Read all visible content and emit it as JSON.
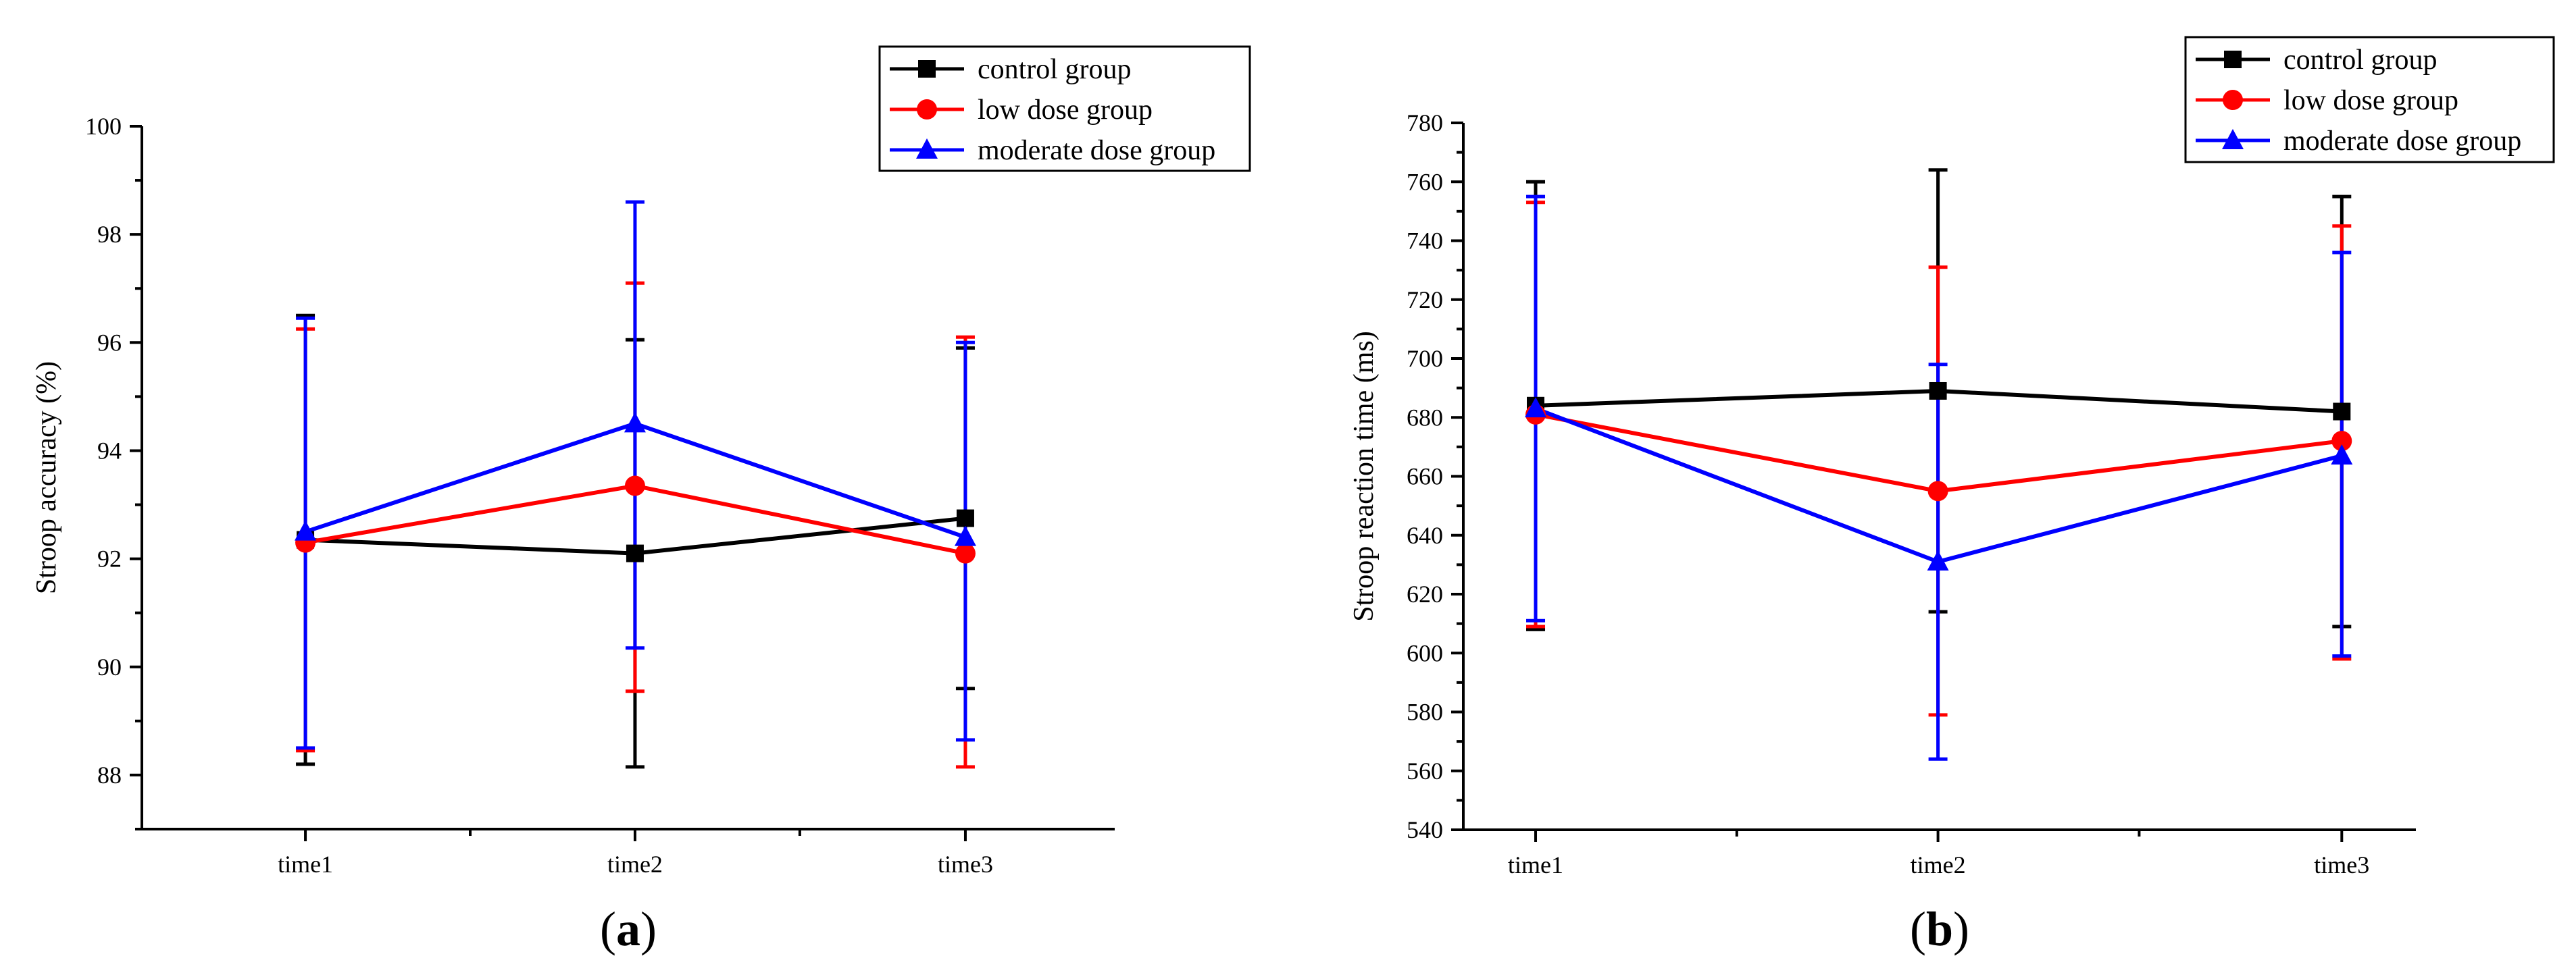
{
  "chart_data": [
    {
      "type": "line",
      "panel_label": "(a)",
      "categories": [
        "time1",
        "time2",
        "time3"
      ],
      "ylabel": "Stroop accuracy (%)",
      "xlabel": "",
      "ylim": [
        87,
        100
      ],
      "yticks": [
        88,
        90,
        92,
        94,
        96,
        98,
        100
      ],
      "series": [
        {
          "name": "control group",
          "color": "#000000",
          "marker": "square",
          "values": [
            92.35,
            92.1,
            92.75
          ],
          "err_low": [
            88.2,
            88.15,
            89.6
          ],
          "err_high": [
            96.5,
            96.05,
            95.9
          ]
        },
        {
          "name": "low dose group",
          "color": "#ff0000",
          "marker": "circle",
          "values": [
            92.3,
            93.35,
            92.1
          ],
          "err_low": [
            88.45,
            89.55,
            88.15
          ],
          "err_high": [
            96.25,
            97.1,
            96.1
          ]
        },
        {
          "name": "moderate dose group",
          "color": "#0000ff",
          "marker": "triangle",
          "values": [
            92.5,
            94.5,
            92.4
          ],
          "err_low": [
            88.5,
            90.35,
            88.65
          ],
          "err_high": [
            96.45,
            98.6,
            96.0
          ]
        }
      ],
      "legend_position": "top-right"
    },
    {
      "type": "line",
      "panel_label": "(b)",
      "categories": [
        "time1",
        "time2",
        "time3"
      ],
      "ylabel": "Stroop reaction time (ms)",
      "xlabel": "",
      "ylim": [
        540,
        780
      ],
      "yticks": [
        540,
        560,
        580,
        600,
        620,
        640,
        660,
        680,
        700,
        720,
        740,
        760,
        780
      ],
      "series": [
        {
          "name": "control group",
          "color": "#000000",
          "marker": "square",
          "values": [
            684,
            689,
            682
          ],
          "err_low": [
            608,
            614,
            609
          ],
          "err_high": [
            760,
            764,
            755
          ]
        },
        {
          "name": "low dose group",
          "color": "#ff0000",
          "marker": "circle",
          "values": [
            681,
            655,
            672
          ],
          "err_low": [
            609,
            579,
            598
          ],
          "err_high": [
            753,
            731,
            745
          ]
        },
        {
          "name": "moderate dose group",
          "color": "#0000ff",
          "marker": "triangle",
          "values": [
            683,
            631,
            667
          ],
          "err_low": [
            611,
            564,
            599
          ],
          "err_high": [
            755,
            698,
            736
          ]
        }
      ],
      "legend_position": "top-right"
    }
  ]
}
